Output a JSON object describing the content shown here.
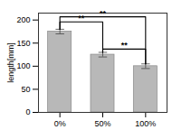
{
  "chart_data": {
    "type": "bar",
    "categories": [
      "0%",
      "50%",
      "100%"
    ],
    "values": [
      175,
      125,
      100
    ],
    "errors": [
      5,
      5,
      5
    ],
    "color": "#b8b8b8",
    "ylabel": "length[mm]",
    "ylim": [
      0,
      215
    ],
    "yticks": [
      0,
      50,
      100,
      150,
      200
    ],
    "annotations": [
      {
        "text": "**",
        "from": "0%",
        "to": "50%",
        "y": 196
      },
      {
        "text": "**",
        "from": "0%",
        "to": "100%",
        "y": 207
      },
      {
        "text": "**",
        "from": "50%",
        "to": "100%",
        "y": 137
      }
    ]
  }
}
